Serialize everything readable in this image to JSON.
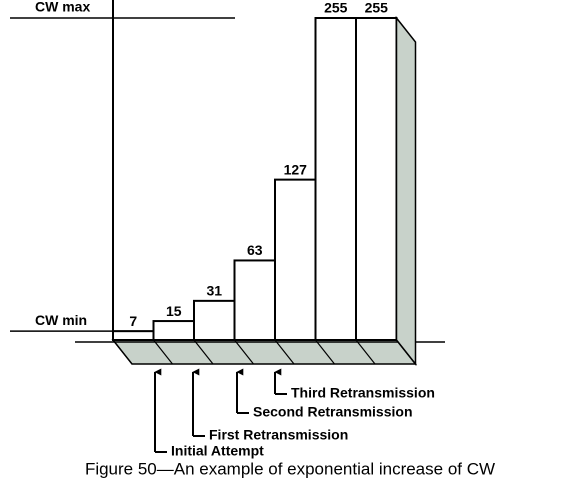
{
  "chart_data": {
    "type": "bar",
    "title": "Figure 50—An example of exponential increase of CW",
    "values": [
      7,
      15,
      31,
      63,
      127,
      255,
      255
    ],
    "color": "#ffffff",
    "ylim": [
      0,
      255
    ],
    "yticks": [
      {
        "value": 7,
        "label": "CW min"
      },
      {
        "value": 255,
        "label": "CW max"
      }
    ],
    "annotations": [
      "Initial Attempt",
      "First Retransmission",
      "Second Retransmission",
      "Third Retransmission"
    ]
  }
}
